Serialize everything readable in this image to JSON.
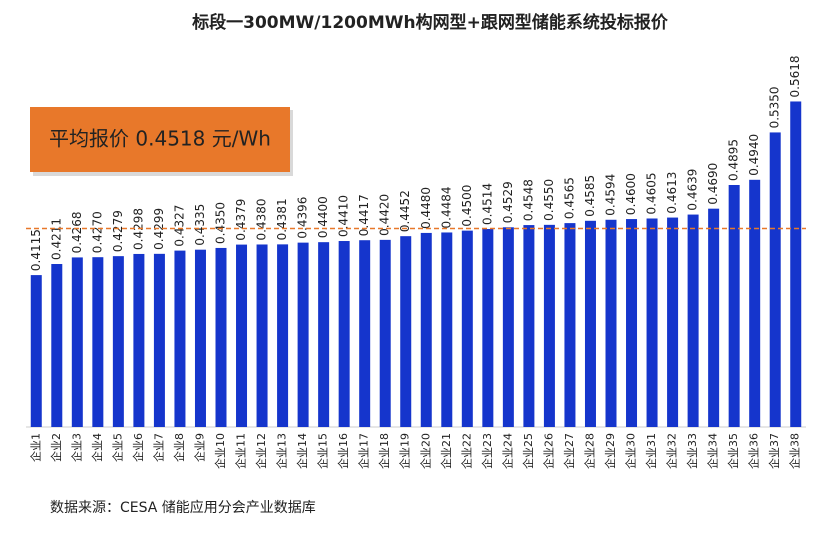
{
  "chart_data": {
    "type": "bar",
    "title": "标段一300MW/1200MWh构网型+跟网型储能系统投标报价",
    "categories": [
      "企业1",
      "企业2",
      "企业3",
      "企业4",
      "企业5",
      "企业6",
      "企业7",
      "企业8",
      "企业9",
      "企业10",
      "企业11",
      "企业12",
      "企业13",
      "企业14",
      "企业15",
      "企业16",
      "企业17",
      "企业18",
      "企业19",
      "企业20",
      "企业21",
      "企业22",
      "企业23",
      "企业24",
      "企业25",
      "企业26",
      "企业27",
      "企业28",
      "企业29",
      "企业30",
      "企业31",
      "企业32",
      "企业33",
      "企业34",
      "企业35",
      "企业36",
      "企业37",
      "企业38"
    ],
    "values": [
      0.4115,
      0.4211,
      0.4268,
      0.427,
      0.4279,
      0.4298,
      0.4299,
      0.4327,
      0.4335,
      0.435,
      0.4379,
      0.438,
      0.4381,
      0.4396,
      0.44,
      0.441,
      0.4417,
      0.442,
      0.4452,
      0.448,
      0.4484,
      0.45,
      0.4514,
      0.4529,
      0.4548,
      0.455,
      0.4565,
      0.4585,
      0.4594,
      0.46,
      0.4605,
      0.4613,
      0.4639,
      0.469,
      0.4895,
      0.494,
      0.535,
      0.5618
    ],
    "value_labels": [
      "0.4115",
      "0.4211",
      "0.4268",
      "0.4270",
      "0.4279",
      "0.4298",
      "0.4299",
      "0.4327",
      "0.4335",
      "0.4350",
      "0.4379",
      "0.4380",
      "0.4381",
      "0.4396",
      "0.4400",
      "0.4410",
      "0.4417",
      "0.4420",
      "0.4452",
      "0.4480",
      "0.4484",
      "0.4500",
      "0.4514",
      "0.4529",
      "0.4548",
      "0.4550",
      "0.4565",
      "0.4585",
      "0.4594",
      "0.4600",
      "0.4605",
      "0.4613",
      "0.4639",
      "0.4690",
      "0.4895",
      "0.4940",
      "0.5350",
      "0.5618"
    ],
    "color": "#1535cc",
    "ylim": [
      0.28,
      0.57
    ],
    "average": {
      "value": 0.4518,
      "label": "平均报价 0.4518 元/Wh",
      "color": "#e8782a"
    },
    "source": "数据来源：CESA  储能应用分会产业数据库"
  }
}
